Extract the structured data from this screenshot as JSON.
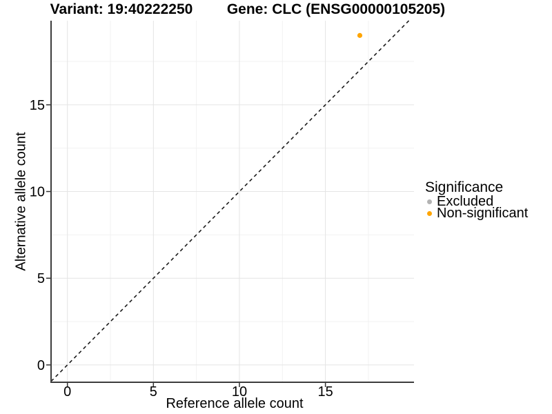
{
  "figure": {
    "titles": {
      "variant": "Variant: 19:40222250",
      "gene": "Gene: CLC (ENSG00000105205)"
    },
    "axes": {
      "x_label": "Reference allele count",
      "y_label": "Alternative allele count"
    },
    "legend": {
      "title": "Significance",
      "items": [
        {
          "label": "Excluded",
          "color": "#B3B3B3"
        },
        {
          "label": "Non-significant",
          "color": "#FFA500"
        }
      ]
    }
  },
  "chart_data": {
    "type": "scatter",
    "title": "Variant: 19:40222250 — Gene: CLC (ENSG00000105205)",
    "xlabel": "Reference allele count",
    "ylabel": "Alternative allele count",
    "xlim": [
      -0.95,
      20.15
    ],
    "ylim": [
      -1.0,
      19.85
    ],
    "x_ticks": [
      0,
      5,
      10,
      15
    ],
    "y_ticks": [
      0,
      5,
      10,
      15
    ],
    "minor_grid_offset": 2.5,
    "grid": true,
    "identity_line": {
      "equation": "y = x",
      "style": "dashed",
      "color": "#1A1A1A"
    },
    "series": [
      {
        "name": "Excluded",
        "color": "#B3B3B3",
        "points": []
      },
      {
        "name": "Non-significant",
        "color": "#FFA500",
        "points": [
          {
            "x": 17,
            "y": 19
          }
        ]
      }
    ],
    "legend_title": "Significance",
    "legend_position": "right",
    "colors": {
      "major_grid": "#E4E4E4",
      "minor_grid": "#F1F1F1",
      "axis_line": "#3C3C3C",
      "tick_mark": "#333333",
      "tick_label": "#000000"
    }
  }
}
